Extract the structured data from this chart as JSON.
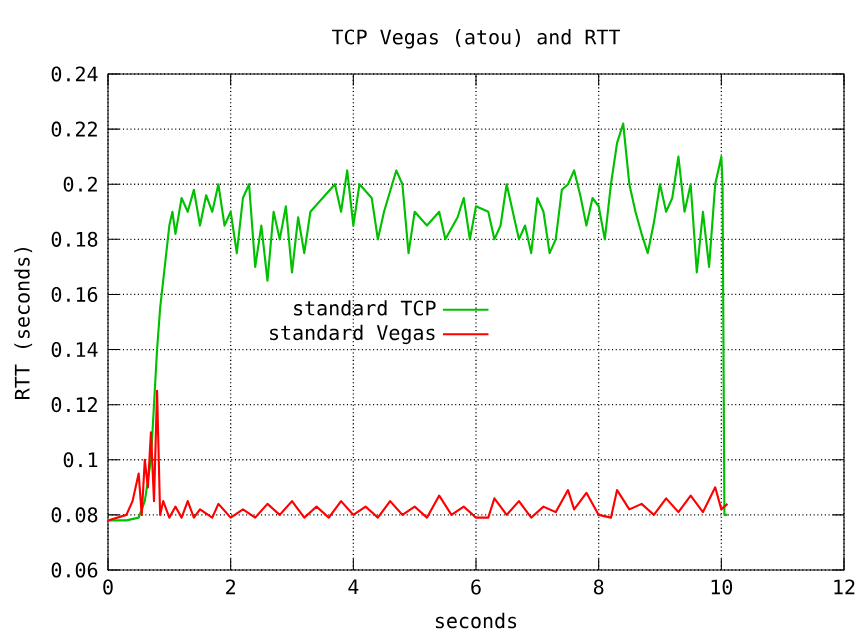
{
  "chart_data": {
    "type": "line",
    "title": "TCP Vegas (atou) and RTT",
    "xlabel": "seconds",
    "ylabel": "RTT (seconds)",
    "xlim": [
      0,
      12
    ],
    "xticks": [
      0,
      2,
      4,
      6,
      8,
      10,
      12
    ],
    "ylim": [
      0.06,
      0.24
    ],
    "yticks": [
      0.06,
      0.08,
      0.1,
      0.12,
      0.14,
      0.16,
      0.18,
      0.2,
      0.22,
      0.24
    ],
    "grid": true,
    "legend": "left",
    "marker": "none",
    "line_style": "solid",
    "series": [
      {
        "name": "standard TCP",
        "color": "#00c000",
        "x": [
          0,
          0.3,
          0.5,
          0.6,
          0.7,
          0.75,
          0.8,
          0.85,
          0.9,
          0.95,
          1.0,
          1.05,
          1.1,
          1.2,
          1.3,
          1.4,
          1.5,
          1.6,
          1.7,
          1.8,
          1.9,
          2.0,
          2.1,
          2.2,
          2.3,
          2.4,
          2.5,
          2.6,
          2.7,
          2.8,
          2.9,
          3.0,
          3.1,
          3.2,
          3.3,
          3.5,
          3.7,
          3.8,
          3.9,
          4.0,
          4.1,
          4.3,
          4.4,
          4.5,
          4.7,
          4.8,
          4.9,
          5.0,
          5.2,
          5.4,
          5.5,
          5.7,
          5.8,
          5.9,
          6.0,
          6.2,
          6.3,
          6.4,
          6.5,
          6.6,
          6.7,
          6.8,
          6.9,
          7.0,
          7.1,
          7.2,
          7.3,
          7.4,
          7.5,
          7.6,
          7.7,
          7.8,
          7.9,
          8.0,
          8.1,
          8.2,
          8.3,
          8.4,
          8.5,
          8.6,
          8.7,
          8.8,
          8.9,
          9.0,
          9.1,
          9.2,
          9.3,
          9.4,
          9.5,
          9.6,
          9.7,
          9.8,
          9.9,
          10.0,
          10.02,
          10.05,
          10.1
        ],
        "values": [
          0.078,
          0.078,
          0.079,
          0.085,
          0.1,
          0.12,
          0.14,
          0.155,
          0.165,
          0.175,
          0.185,
          0.19,
          0.182,
          0.195,
          0.19,
          0.198,
          0.185,
          0.196,
          0.19,
          0.2,
          0.185,
          0.19,
          0.175,
          0.195,
          0.2,
          0.17,
          0.185,
          0.165,
          0.19,
          0.18,
          0.192,
          0.168,
          0.188,
          0.175,
          0.19,
          0.195,
          0.2,
          0.19,
          0.205,
          0.185,
          0.2,
          0.195,
          0.18,
          0.19,
          0.205,
          0.2,
          0.175,
          0.19,
          0.185,
          0.19,
          0.18,
          0.188,
          0.195,
          0.18,
          0.192,
          0.19,
          0.18,
          0.185,
          0.2,
          0.19,
          0.18,
          0.185,
          0.175,
          0.195,
          0.19,
          0.175,
          0.18,
          0.198,
          0.2,
          0.205,
          0.196,
          0.185,
          0.195,
          0.192,
          0.18,
          0.2,
          0.215,
          0.222,
          0.2,
          0.19,
          0.182,
          0.175,
          0.186,
          0.2,
          0.19,
          0.195,
          0.21,
          0.19,
          0.2,
          0.168,
          0.19,
          0.17,
          0.2,
          0.21,
          0.2,
          0.08,
          0.08
        ]
      },
      {
        "name": "standard Vegas",
        "color": "#ff0000",
        "x": [
          0,
          0.3,
          0.4,
          0.5,
          0.55,
          0.6,
          0.65,
          0.7,
          0.75,
          0.8,
          0.85,
          0.9,
          1.0,
          1.1,
          1.2,
          1.3,
          1.4,
          1.5,
          1.7,
          1.8,
          2.0,
          2.2,
          2.4,
          2.6,
          2.8,
          3.0,
          3.2,
          3.4,
          3.6,
          3.8,
          4.0,
          4.2,
          4.4,
          4.6,
          4.8,
          5.0,
          5.2,
          5.4,
          5.6,
          5.8,
          6.0,
          6.2,
          6.3,
          6.5,
          6.7,
          6.9,
          7.1,
          7.3,
          7.5,
          7.6,
          7.8,
          8.0,
          8.2,
          8.3,
          8.5,
          8.7,
          8.9,
          9.1,
          9.3,
          9.5,
          9.7,
          9.9,
          10.0,
          10.1
        ],
        "values": [
          0.078,
          0.08,
          0.085,
          0.095,
          0.08,
          0.1,
          0.09,
          0.11,
          0.085,
          0.125,
          0.08,
          0.085,
          0.079,
          0.083,
          0.079,
          0.085,
          0.079,
          0.082,
          0.079,
          0.084,
          0.079,
          0.082,
          0.079,
          0.084,
          0.08,
          0.085,
          0.079,
          0.083,
          0.079,
          0.085,
          0.08,
          0.083,
          0.079,
          0.085,
          0.08,
          0.083,
          0.079,
          0.087,
          0.08,
          0.083,
          0.079,
          0.079,
          0.086,
          0.08,
          0.085,
          0.079,
          0.083,
          0.081,
          0.089,
          0.082,
          0.088,
          0.08,
          0.079,
          0.089,
          0.082,
          0.084,
          0.08,
          0.086,
          0.081,
          0.087,
          0.081,
          0.09,
          0.082,
          0.084
        ]
      }
    ]
  }
}
